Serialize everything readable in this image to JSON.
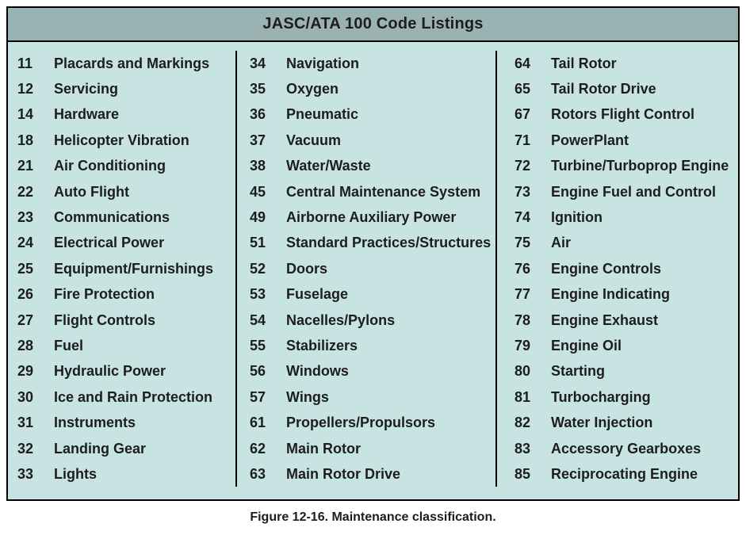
{
  "table": {
    "title": "JASC/ATA 100 Code Listings",
    "columns": [
      {
        "entries": [
          {
            "code": "11",
            "label": "Placards and Markings"
          },
          {
            "code": "12",
            "label": "Servicing"
          },
          {
            "code": "14",
            "label": "Hardware"
          },
          {
            "code": "18",
            "label": "Helicopter Vibration"
          },
          {
            "code": "21",
            "label": "Air Conditioning"
          },
          {
            "code": "22",
            "label": "Auto Flight"
          },
          {
            "code": "23",
            "label": "Communications"
          },
          {
            "code": "24",
            "label": "Electrical Power"
          },
          {
            "code": "25",
            "label": "Equipment/Furnishings"
          },
          {
            "code": "26",
            "label": "Fire Protection"
          },
          {
            "code": "27",
            "label": "Flight Controls"
          },
          {
            "code": "28",
            "label": "Fuel"
          },
          {
            "code": "29",
            "label": "Hydraulic Power"
          },
          {
            "code": "30",
            "label": "Ice and Rain Protection"
          },
          {
            "code": "31",
            "label": "Instruments"
          },
          {
            "code": "32",
            "label": "Landing Gear"
          },
          {
            "code": "33",
            "label": "Lights"
          }
        ]
      },
      {
        "entries": [
          {
            "code": "34",
            "label": "Navigation"
          },
          {
            "code": "35",
            "label": "Oxygen"
          },
          {
            "code": "36",
            "label": "Pneumatic"
          },
          {
            "code": "37",
            "label": "Vacuum"
          },
          {
            "code": "38",
            "label": "Water/Waste"
          },
          {
            "code": "45",
            "label": "Central Maintenance System"
          },
          {
            "code": "49",
            "label": "Airborne Auxiliary Power"
          },
          {
            "code": "51",
            "label": "Standard Practices/Structures"
          },
          {
            "code": "52",
            "label": "Doors"
          },
          {
            "code": "53",
            "label": "Fuselage"
          },
          {
            "code": "54",
            "label": "Nacelles/Pylons"
          },
          {
            "code": "55",
            "label": "Stabilizers"
          },
          {
            "code": "56",
            "label": "Windows"
          },
          {
            "code": "57",
            "label": "Wings"
          },
          {
            "code": "61",
            "label": "Propellers/Propulsors"
          },
          {
            "code": "62",
            "label": "Main Rotor"
          },
          {
            "code": "63",
            "label": "Main Rotor Drive"
          }
        ]
      },
      {
        "entries": [
          {
            "code": "64",
            "label": "Tail Rotor"
          },
          {
            "code": "65",
            "label": "Tail Rotor Drive"
          },
          {
            "code": "67",
            "label": "Rotors Flight Control"
          },
          {
            "code": "71",
            "label": "PowerPlant"
          },
          {
            "code": "72",
            "label": "Turbine/Turboprop Engine"
          },
          {
            "code": "73",
            "label": "Engine Fuel and Control"
          },
          {
            "code": "74",
            "label": "Ignition"
          },
          {
            "code": "75",
            "label": "Air"
          },
          {
            "code": "76",
            "label": "Engine Controls"
          },
          {
            "code": "77",
            "label": "Engine Indicating"
          },
          {
            "code": "78",
            "label": "Engine Exhaust"
          },
          {
            "code": "79",
            "label": "Engine Oil"
          },
          {
            "code": "80",
            "label": "Starting"
          },
          {
            "code": "81",
            "label": "Turbocharging"
          },
          {
            "code": "82",
            "label": "Water Injection"
          },
          {
            "code": "83",
            "label": "Accessory Gearboxes"
          },
          {
            "code": "85",
            "label": "Reciprocating Engine"
          }
        ]
      }
    ]
  },
  "caption": "Figure 12-16. Maintenance classification.",
  "colors": {
    "header_bg": "#9ab2b1",
    "body_bg": "#c7e4e3",
    "border": "#000000",
    "text": "#1d1d1d"
  }
}
